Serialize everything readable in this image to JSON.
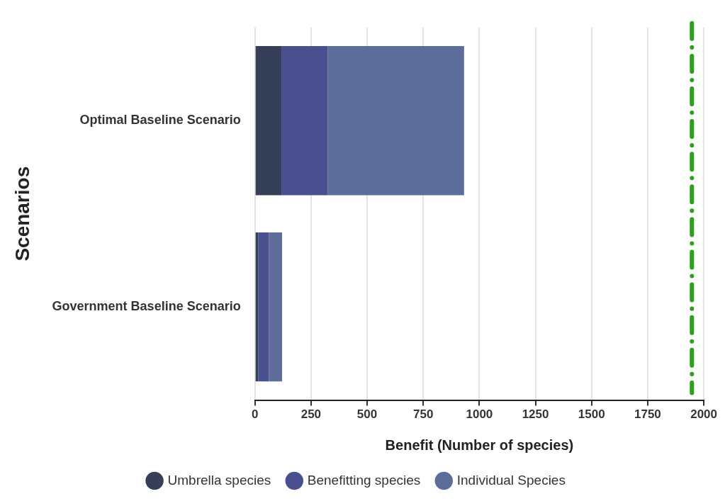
{
  "chart_data": {
    "type": "bar",
    "orientation": "horizontal",
    "stacked": true,
    "xlabel": "Benefit (Number of species)",
    "ylabel": "Scenarios",
    "categories": [
      "Optimal Baseline Scenario",
      "Government Baseline Scenario"
    ],
    "series": [
      {
        "name": "Umbrella species",
        "color": "#363f58",
        "values": [
          118,
          15
        ]
      },
      {
        "name": "Benefitting species",
        "color": "#4a508f",
        "values": [
          206,
          47
        ]
      },
      {
        "name": "Individual Species",
        "color": "#5d6d99",
        "values": [
          608,
          59
        ]
      }
    ],
    "xlim": [
      0,
      2000
    ],
    "xticks": [
      0,
      250,
      500,
      750,
      1000,
      1250,
      1500,
      1750,
      2000
    ],
    "ref_lines": [
      {
        "axis": "x",
        "value": 1947,
        "color": "#2ca01c",
        "line_style": "dashed"
      }
    ],
    "grid": "x",
    "legend": "bottom"
  }
}
